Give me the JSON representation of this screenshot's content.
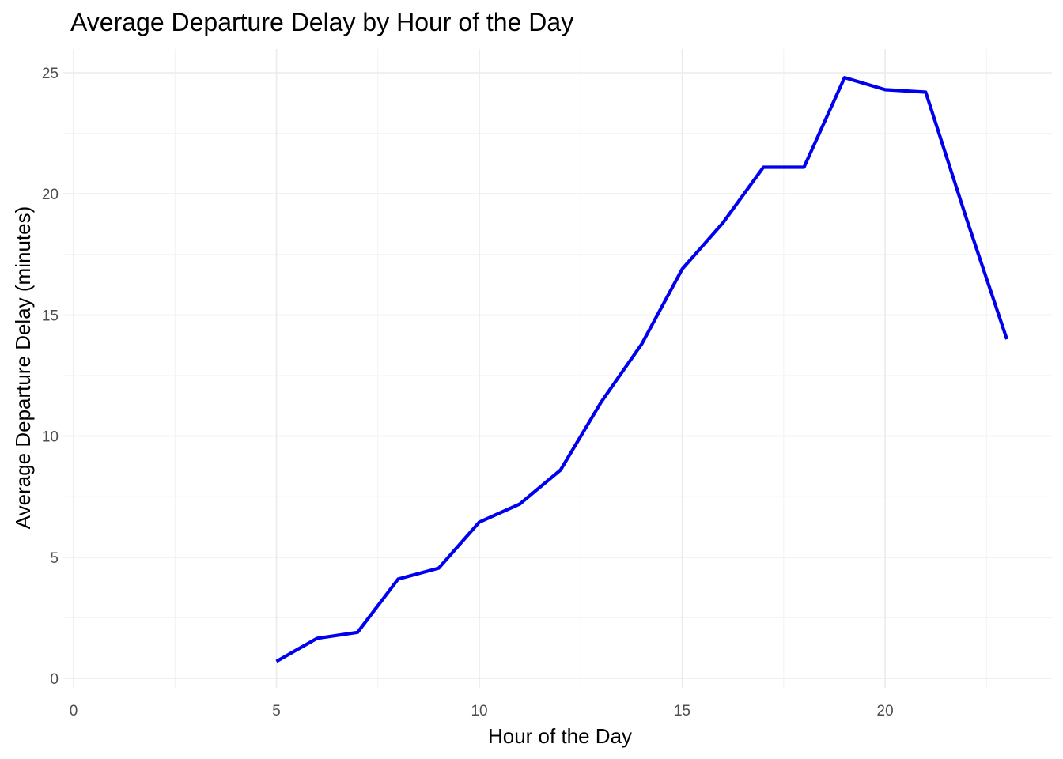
{
  "chart_data": {
    "type": "line",
    "title": "Average Departure Delay by Hour of the Day",
    "xlabel": "Hour of the Day",
    "ylabel": "Average Departure Delay (minutes)",
    "xlim": [
      0,
      23
    ],
    "ylim": [
      0,
      25
    ],
    "x_ticks": [
      0,
      5,
      10,
      15,
      20
    ],
    "y_ticks": [
      0,
      5,
      10,
      15,
      20,
      25
    ],
    "grid": true,
    "line_color": "#0000ee",
    "series": [
      {
        "x": [
          5,
          6,
          7,
          8,
          9,
          10,
          11,
          12,
          13,
          14,
          15,
          16,
          17,
          18,
          19,
          20,
          21,
          22,
          23
        ],
        "values": [
          0.7,
          1.65,
          1.9,
          4.1,
          4.55,
          6.45,
          7.2,
          8.6,
          11.4,
          13.8,
          16.9,
          18.8,
          21.1,
          21.1,
          24.8,
          24.3,
          24.2,
          19.0,
          14.0
        ]
      }
    ]
  }
}
